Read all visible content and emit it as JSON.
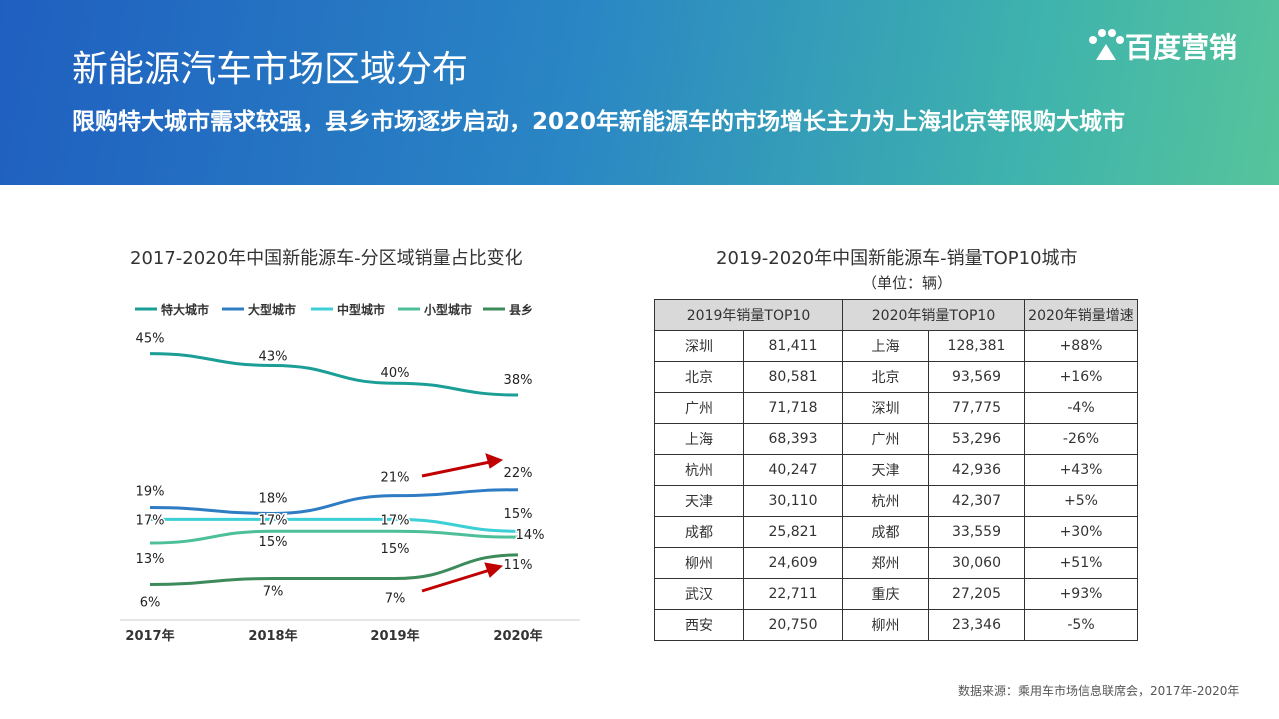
{
  "header": {
    "title": "新能源汽车市场区域分布",
    "subtitle": "限购特大城市需求较强，县乡市场逐步启动，2020年新能源车的市场增长主力为上海北京等限购大城市",
    "logo": "百度营销"
  },
  "chart_data": {
    "type": "line",
    "title": "2017-2020年中国新能源车-分区域销量占比变化",
    "categories": [
      "2017年",
      "2018年",
      "2019年",
      "2020年"
    ],
    "series": [
      {
        "name": "特大城市",
        "color": "#1a9e96",
        "values": [
          45,
          43,
          40,
          38
        ],
        "value_labels": [
          "45%",
          "43%",
          "40%",
          "38%"
        ]
      },
      {
        "name": "大型城市",
        "color": "#2e7cc4",
        "values": [
          19,
          18,
          21,
          22
        ],
        "value_labels": [
          "19%",
          "18%",
          "21%",
          "22%"
        ]
      },
      {
        "name": "中型城市",
        "color": "#3ccfd6",
        "values": [
          17,
          17,
          17,
          15
        ],
        "value_labels": [
          "17%",
          "17%",
          "17%",
          "15%"
        ]
      },
      {
        "name": "小型城市",
        "color": "#4dbf9a",
        "values": [
          13,
          15,
          15,
          14
        ],
        "value_labels": [
          "13%",
          "15%",
          "15%",
          "14%"
        ]
      },
      {
        "name": "县乡",
        "color": "#3d8a5a",
        "values": [
          6,
          7,
          7,
          11
        ],
        "value_labels": [
          "6%",
          "7%",
          "7%",
          "11%"
        ]
      }
    ]
  },
  "table": {
    "title": "2019-2020年中国新能源车-销量TOP10城市",
    "unit": "（单位：辆）",
    "header": [
      "2019年销量TOP10",
      "2020年销量TOP10",
      "2020年销量增速"
    ],
    "rows": [
      [
        "深圳",
        "81,411",
        "上海",
        "128,381",
        "+88%"
      ],
      [
        "北京",
        "80,581",
        "北京",
        "93,569",
        "+16%"
      ],
      [
        "广州",
        "71,718",
        "深圳",
        "77,775",
        "-4%"
      ],
      [
        "上海",
        "68,393",
        "广州",
        "53,296",
        "-26%"
      ],
      [
        "杭州",
        "40,247",
        "天津",
        "42,936",
        "+43%"
      ],
      [
        "天津",
        "30,110",
        "杭州",
        "42,307",
        "+5%"
      ],
      [
        "成都",
        "25,821",
        "成都",
        "33,559",
        "+30%"
      ],
      [
        "柳州",
        "24,609",
        "郑州",
        "30,060",
        "+51%"
      ],
      [
        "武汉",
        "22,711",
        "重庆",
        "27,205",
        "+93%"
      ],
      [
        "西安",
        "20,750",
        "柳州",
        "23,346",
        "-5%"
      ]
    ]
  },
  "source": "数据来源：乘用车市场信息联席会，2017年-2020年"
}
